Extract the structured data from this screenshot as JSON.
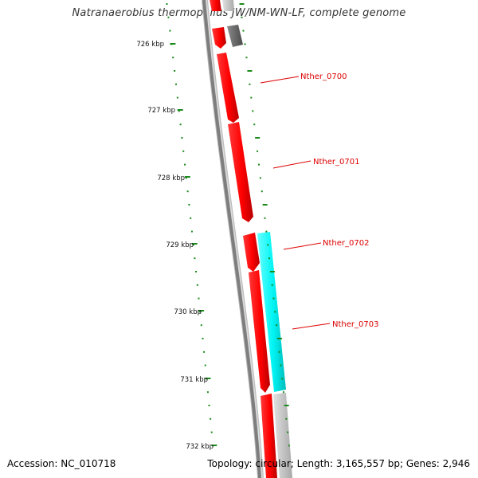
{
  "title": "Natranaerobius thermophilus JW/NM-WN-LF, complete genome",
  "footer": {
    "accession": "Accession: NC_010718",
    "summary": "Topology: circular; Length: 3,165,557 bp; Genes: 2,946"
  },
  "ruler": {
    "labels": [
      "726 kbp",
      "727 kbp",
      "728 kbp",
      "729 kbp",
      "730 kbp",
      "731 kbp",
      "732 kbp"
    ],
    "tick_color": "#1a8a1a"
  },
  "genes": [
    {
      "name": "Nther_0700",
      "strand": "minus",
      "color": "#ff0000"
    },
    {
      "name": "Nther_0701",
      "strand": "minus",
      "color": "#ff0000"
    },
    {
      "name": "Nther_0702",
      "strand": "minus",
      "color": "#ff0000"
    },
    {
      "name": "Nther_0703",
      "strand": "plus",
      "color": "#00ffff"
    }
  ],
  "colors": {
    "backbone": "#888888",
    "gene_minus": "#ff0000",
    "gene_plus": "#00ffff",
    "other_feature": "#666666",
    "label": "#dd0000"
  }
}
